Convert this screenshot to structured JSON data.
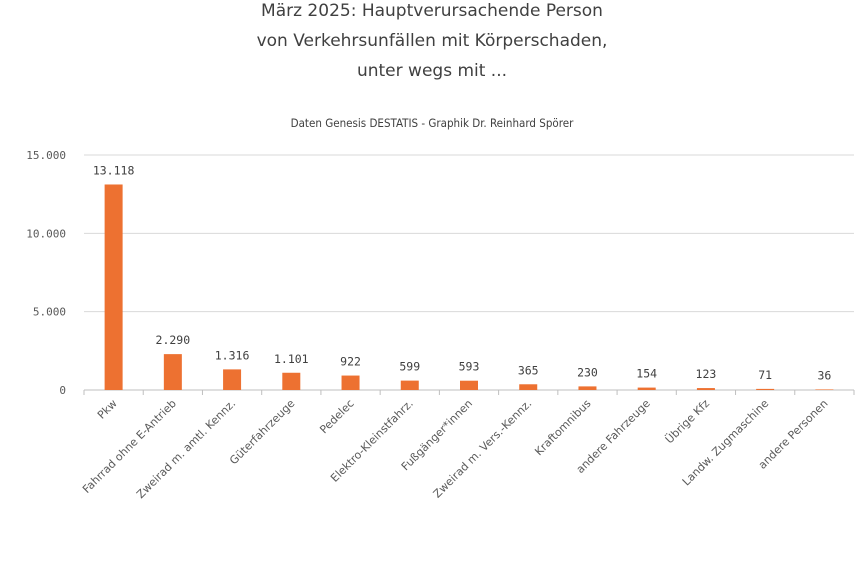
{
  "chart_data": {
    "type": "bar",
    "title": [
      "März 2025: Hauptverursachende Person",
      "von Verkehrsunfällen mit Körperschaden,",
      "unter wegs mit ..."
    ],
    "subtitle": "Daten Genesis DESTATIS - Graphik Dr. Reinhard Spörer",
    "categories": [
      "Pkw",
      "Fahrrad ohne E-Antrieb",
      "Zweirad m. amtl. Kennz.",
      "Güterfahrzeuge",
      "Pedelec",
      "Elektro-Kleinstfahrz.",
      "Fußgänger*innen",
      "Zweirad m. Vers.-Kennz.",
      "Kraftomnibus",
      "andere Fahrzeuge",
      "Übrige Kfz",
      "Landw. Zugmaschine",
      "andere Personen"
    ],
    "values": [
      13118,
      2290,
      1316,
      1101,
      922,
      599,
      593,
      365,
      230,
      154,
      123,
      71,
      36
    ],
    "data_labels": [
      "13.118",
      "2.290",
      "1.316",
      "1.101",
      "922",
      "599",
      "593",
      "365",
      "230",
      "154",
      "123",
      "71",
      "36"
    ],
    "yticks": [
      0,
      5000,
      10000,
      15000
    ],
    "ytick_labels": [
      "0",
      "5.000",
      "10.000",
      "15.000"
    ],
    "ylim": [
      0,
      15000
    ],
    "grid": true,
    "legend": "none",
    "bar_color": "#ED7131"
  }
}
